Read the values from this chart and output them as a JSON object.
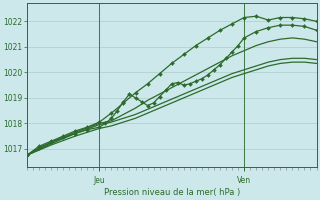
{
  "bg_color": "#cce8ea",
  "grid_color": "#aacccc",
  "line_color": "#2d6a2d",
  "marker_color": "#2d6a2d",
  "title": "Pression niveau de la mer( hPa )",
  "ylabel_ticks": [
    1017,
    1018,
    1019,
    1020,
    1021,
    1022
  ],
  "ylim": [
    1016.3,
    1022.7
  ],
  "xlim": [
    0,
    48
  ],
  "jeu_x": 12,
  "ven_x": 36,
  "lines": [
    {
      "x": [
        0,
        2,
        4,
        6,
        8,
        10,
        12,
        14,
        16,
        18,
        20,
        22,
        24,
        26,
        28,
        30,
        32,
        34,
        36,
        38,
        40,
        42,
        44,
        46,
        48
      ],
      "y": [
        1016.75,
        1017.1,
        1017.3,
        1017.5,
        1017.7,
        1017.85,
        1018.05,
        1018.4,
        1018.8,
        1019.2,
        1019.55,
        1019.95,
        1020.35,
        1020.7,
        1021.05,
        1021.35,
        1021.65,
        1021.9,
        1022.15,
        1022.2,
        1022.05,
        1022.15,
        1022.15,
        1022.1,
        1022.0
      ],
      "marker": true,
      "lw": 0.9
    },
    {
      "x": [
        0,
        4,
        8,
        12,
        14,
        16,
        18,
        20,
        22,
        24,
        26,
        28,
        30,
        32,
        34,
        36,
        38,
        40,
        42,
        44,
        46,
        48
      ],
      "y": [
        1016.75,
        1017.25,
        1017.65,
        1018.0,
        1018.1,
        1018.35,
        1018.6,
        1018.9,
        1019.15,
        1019.4,
        1019.65,
        1019.9,
        1020.15,
        1020.4,
        1020.65,
        1020.85,
        1021.05,
        1021.2,
        1021.3,
        1021.35,
        1021.3,
        1021.2
      ],
      "marker": false,
      "lw": 0.9
    },
    {
      "x": [
        0,
        4,
        8,
        12,
        14,
        16,
        18,
        20,
        22,
        24,
        26,
        28,
        30,
        32,
        34,
        36,
        38,
        40,
        42,
        44,
        46,
        48
      ],
      "y": [
        1016.75,
        1017.2,
        1017.6,
        1017.95,
        1018.05,
        1018.2,
        1018.35,
        1018.55,
        1018.75,
        1018.95,
        1019.15,
        1019.35,
        1019.55,
        1019.75,
        1019.95,
        1020.1,
        1020.25,
        1020.4,
        1020.5,
        1020.55,
        1020.55,
        1020.5
      ],
      "marker": false,
      "lw": 0.9
    },
    {
      "x": [
        0,
        2,
        4,
        6,
        8,
        10,
        12,
        13,
        14,
        15,
        16,
        17,
        18,
        19,
        20,
        21,
        22,
        23,
        24,
        25,
        26,
        27,
        28,
        29,
        30,
        31,
        32,
        33,
        34,
        35,
        36,
        38,
        40,
        42,
        44,
        46,
        48
      ],
      "y": [
        1016.75,
        1017.05,
        1017.25,
        1017.45,
        1017.6,
        1017.75,
        1017.85,
        1018.0,
        1018.2,
        1018.5,
        1018.85,
        1019.15,
        1019.0,
        1018.85,
        1018.7,
        1018.8,
        1019.05,
        1019.3,
        1019.55,
        1019.6,
        1019.5,
        1019.55,
        1019.65,
        1019.75,
        1019.9,
        1020.1,
        1020.3,
        1020.55,
        1020.8,
        1021.05,
        1021.35,
        1021.6,
        1021.75,
        1021.85,
        1021.85,
        1021.8,
        1021.65
      ],
      "marker": true,
      "lw": 0.9
    },
    {
      "x": [
        0,
        4,
        8,
        12,
        14,
        16,
        18,
        20,
        22,
        24,
        26,
        28,
        30,
        32,
        34,
        36,
        38,
        40,
        42,
        44,
        46,
        48
      ],
      "y": [
        1016.75,
        1017.15,
        1017.5,
        1017.8,
        1017.9,
        1018.05,
        1018.2,
        1018.4,
        1018.6,
        1018.8,
        1019.0,
        1019.2,
        1019.4,
        1019.6,
        1019.8,
        1019.95,
        1020.1,
        1020.25,
        1020.35,
        1020.4,
        1020.4,
        1020.35
      ],
      "marker": false,
      "lw": 0.9
    }
  ]
}
